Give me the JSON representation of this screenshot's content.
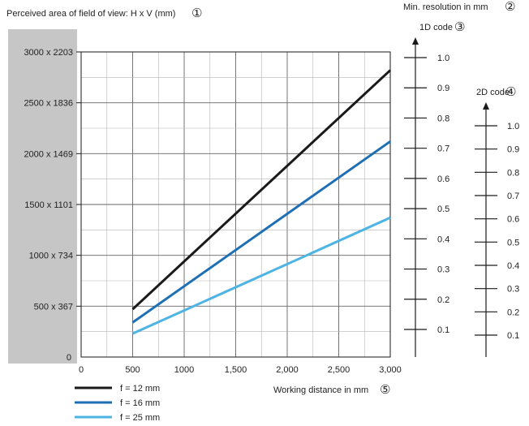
{
  "header": {
    "y_title": "Perceived area of field of view: H x V (mm)",
    "y_title_marker": "①",
    "resolution_title": "Min. resolution in mm",
    "resolution_title_marker": "②",
    "x_title": "Working distance in mm",
    "x_title_marker": "⑤"
  },
  "chart_data": {
    "type": "line",
    "xlabel": "Working distance in mm",
    "ylabel": "Perceived area of field of view: H x V (mm)",
    "xlim": [
      0,
      3000
    ],
    "ylim": [
      0,
      3000
    ],
    "x_ticks": [
      0,
      500,
      1000,
      1500,
      2000,
      2500,
      3000
    ],
    "x_tick_labels": [
      "0",
      "500",
      "1000",
      "1,500",
      "2,000",
      "2,500",
      "3,000"
    ],
    "y_ticks": [
      0,
      500,
      1000,
      1500,
      2000,
      2500,
      3000
    ],
    "y_tick_labels": [
      "0",
      "500 x 367",
      "1000 x 734",
      "1500 x 1101",
      "2000 x 1469",
      "2500 x 1836",
      "3000 x 2203"
    ],
    "grid": true,
    "legend_position": "bottom-left",
    "series": [
      {
        "name": "f = 12 mm",
        "color": "#1a1a1a",
        "x": [
          500,
          3000
        ],
        "y": [
          470,
          2820
        ]
      },
      {
        "name": "f = 16 mm",
        "color": "#1f6fb5",
        "x": [
          500,
          3000
        ],
        "y": [
          340,
          2120
        ]
      },
      {
        "name": "f = 25 mm",
        "color": "#4db4e3",
        "x": [
          500,
          3000
        ],
        "y": [
          230,
          1370
        ]
      }
    ],
    "secondary_axes": [
      {
        "name": "1D code",
        "marker": "③",
        "range": [
          0,
          1.0
        ],
        "ticks": [
          0.1,
          0.2,
          0.3,
          0.4,
          0.5,
          0.6,
          0.7,
          0.8,
          0.9,
          1.0
        ],
        "tick_labels": [
          "0.1",
          "0.2",
          "0.3",
          "0.4",
          "0.5",
          "0.6",
          "0.7",
          "0.8",
          "0.9",
          "1.0"
        ]
      },
      {
        "name": "2D code",
        "marker": "④",
        "range": [
          0,
          1.0
        ],
        "ticks": [
          0.1,
          0.2,
          0.3,
          0.4,
          0.5,
          0.6,
          0.7,
          0.8,
          0.9,
          1.0
        ],
        "tick_labels": [
          "0.1",
          "0.2",
          "0.3",
          "0.4",
          "0.5",
          "0.6",
          "0.7",
          "0.8",
          "0.9",
          "1.0"
        ]
      }
    ]
  },
  "colors": {
    "y_band": "#c6c6c6",
    "grid": "#b4b4b4",
    "axis": "#1a1a1a"
  }
}
